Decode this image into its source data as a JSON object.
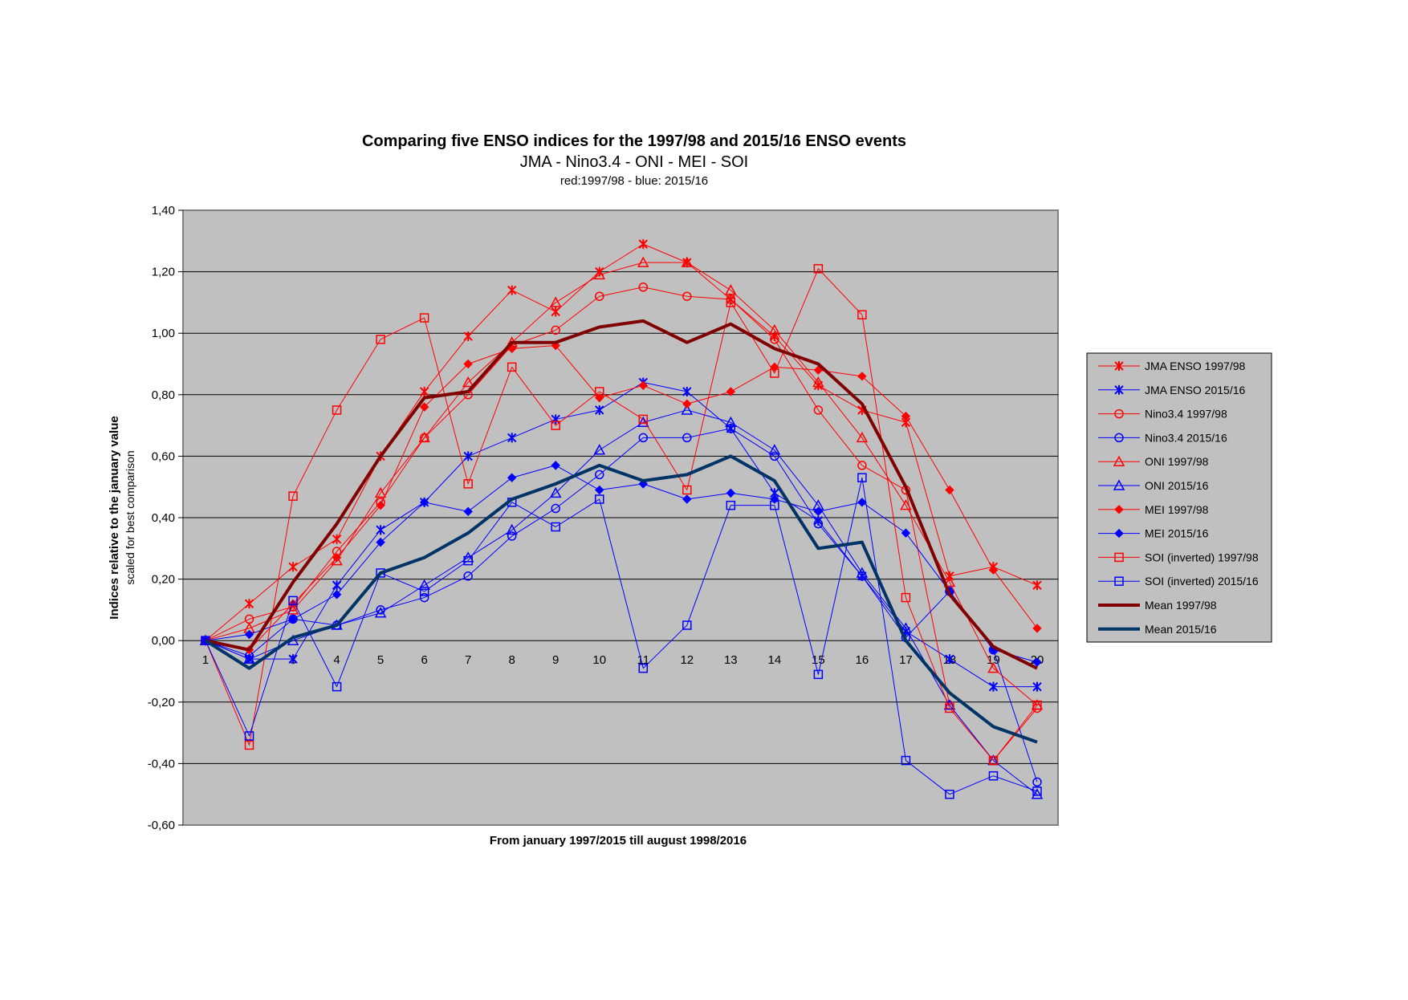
{
  "chart_data": {
    "type": "line",
    "title": "Comparing five ENSO indices for the 1997/98 and 2015/16 ENSO events",
    "subtitle": "JMA - Nino3.4 - ONI - MEI - SOI",
    "subsubtitle": "red:1997/98 - blue: 2015/16",
    "xlabel": "From january 1997/2015 till august 1998/2016",
    "ylabel_line1": "Indices relative to the january value",
    "ylabel_line2": "scaled for best comparison",
    "ylim": [
      -0.6,
      1.4
    ],
    "yticks": [
      1.4,
      1.2,
      1.0,
      0.8,
      0.6,
      0.4,
      0.2,
      0.0,
      -0.2,
      -0.4,
      -0.6
    ],
    "yticklabels": [
      "1,40",
      "1,20",
      "1,00",
      "0,80",
      "0,60",
      "0,40",
      "0,20",
      "0,00",
      "-0,20",
      "-0,40",
      "-0,60"
    ],
    "categories": [
      "1",
      "2",
      "3",
      "4",
      "5",
      "6",
      "7",
      "8",
      "9",
      "10",
      "11",
      "12",
      "13",
      "14",
      "15",
      "16",
      "17",
      "18",
      "19",
      "20"
    ],
    "grid": true,
    "legend_position": "right",
    "plot_background": "#c0c0c0",
    "series": [
      {
        "name": "JMA ENSO 1997/98",
        "color": "#ff0000",
        "marker": "asterisk",
        "width": 1,
        "values": [
          0.0,
          0.12,
          0.24,
          0.33,
          0.6,
          0.81,
          0.99,
          1.14,
          1.07,
          1.2,
          1.29,
          1.23,
          1.11,
          0.99,
          0.83,
          0.75,
          0.71,
          0.21,
          0.24,
          0.18
        ]
      },
      {
        "name": "JMA ENSO 2015/16",
        "color": "#0000ff",
        "marker": "asterisk",
        "width": 1,
        "values": [
          0.0,
          -0.06,
          -0.06,
          0.18,
          0.36,
          0.45,
          0.6,
          0.66,
          0.72,
          0.75,
          0.84,
          0.81,
          0.69,
          0.48,
          0.39,
          0.21,
          0.03,
          -0.06,
          -0.15,
          -0.15
        ]
      },
      {
        "name": "Nino3.4 1997/98",
        "color": "#ff0000",
        "marker": "circle",
        "width": 1,
        "values": [
          0.0,
          0.07,
          0.11,
          0.29,
          0.45,
          0.66,
          0.8,
          0.96,
          1.01,
          1.12,
          1.15,
          1.12,
          1.11,
          0.98,
          0.75,
          0.57,
          0.49,
          -0.21,
          -0.39,
          -0.22
        ]
      },
      {
        "name": "Nino3.4 2015/16",
        "color": "#0000ff",
        "marker": "circle",
        "width": 1,
        "values": [
          0.0,
          -0.05,
          0.07,
          0.05,
          0.1,
          0.14,
          0.21,
          0.34,
          0.43,
          0.54,
          0.66,
          0.66,
          0.69,
          0.6,
          0.38,
          0.21,
          0.01,
          0.16,
          -0.03,
          -0.46
        ]
      },
      {
        "name": "ONI 1997/98",
        "color": "#ff0000",
        "marker": "triangle",
        "width": 1,
        "values": [
          0.0,
          0.04,
          0.1,
          0.26,
          0.48,
          0.66,
          0.84,
          0.97,
          1.1,
          1.19,
          1.23,
          1.23,
          1.14,
          1.01,
          0.84,
          0.66,
          0.44,
          0.19,
          -0.09,
          -0.21
        ]
      },
      {
        "name": "ONI 2015/16",
        "color": "#0000ff",
        "marker": "triangle",
        "width": 1,
        "values": [
          0.0,
          -0.06,
          0.0,
          0.05,
          0.09,
          0.18,
          0.27,
          0.36,
          0.48,
          0.62,
          0.71,
          0.75,
          0.71,
          0.62,
          0.44,
          0.22,
          0.04,
          -0.21,
          -0.39,
          -0.5
        ]
      },
      {
        "name": "MEI 1997/98",
        "color": "#ff0000",
        "marker": "diamond",
        "width": 1,
        "values": [
          0.0,
          -0.03,
          0.12,
          0.27,
          0.44,
          0.76,
          0.9,
          0.95,
          0.96,
          0.79,
          0.83,
          0.77,
          0.81,
          0.89,
          0.88,
          0.86,
          0.73,
          0.49,
          0.23,
          0.04
        ]
      },
      {
        "name": "MEI 2015/16",
        "color": "#0000ff",
        "marker": "diamond",
        "width": 1,
        "values": [
          0.0,
          0.02,
          0.07,
          0.15,
          0.32,
          0.45,
          0.42,
          0.53,
          0.57,
          0.49,
          0.51,
          0.46,
          0.48,
          0.46,
          0.42,
          0.45,
          0.35,
          0.16,
          -0.03,
          -0.07
        ]
      },
      {
        "name": "SOI (inverted) 1997/98",
        "color": "#ff0000",
        "marker": "square",
        "width": 1,
        "values": [
          0.0,
          -0.34,
          0.47,
          0.75,
          0.98,
          1.05,
          0.51,
          0.89,
          0.7,
          0.81,
          0.72,
          0.49,
          1.1,
          0.87,
          1.21,
          1.06,
          0.14,
          -0.22,
          -0.39,
          -0.21
        ]
      },
      {
        "name": "SOI (inverted) 2015/16",
        "color": "#0000ff",
        "marker": "square",
        "width": 1,
        "values": [
          0.0,
          -0.31,
          0.13,
          -0.15,
          0.22,
          0.16,
          0.26,
          0.45,
          0.37,
          0.46,
          -0.09,
          0.05,
          0.44,
          0.44,
          -0.11,
          0.53,
          -0.39,
          -0.5,
          -0.44,
          -0.49
        ]
      },
      {
        "name": "Mean 1997/98",
        "color": "#800000",
        "marker": "none",
        "width": 4,
        "values": [
          0.0,
          -0.03,
          0.19,
          0.38,
          0.6,
          0.79,
          0.81,
          0.97,
          0.97,
          1.02,
          1.04,
          0.97,
          1.03,
          0.95,
          0.9,
          0.77,
          0.5,
          0.15,
          -0.02,
          -0.09
        ]
      },
      {
        "name": "Mean 2015/16",
        "color": "#003366",
        "marker": "none",
        "width": 4,
        "values": [
          0.0,
          -0.09,
          0.01,
          0.05,
          0.22,
          0.27,
          0.35,
          0.46,
          0.51,
          0.57,
          0.52,
          0.54,
          0.6,
          0.52,
          0.3,
          0.32,
          0.0,
          -0.17,
          -0.28,
          -0.33
        ]
      }
    ]
  }
}
